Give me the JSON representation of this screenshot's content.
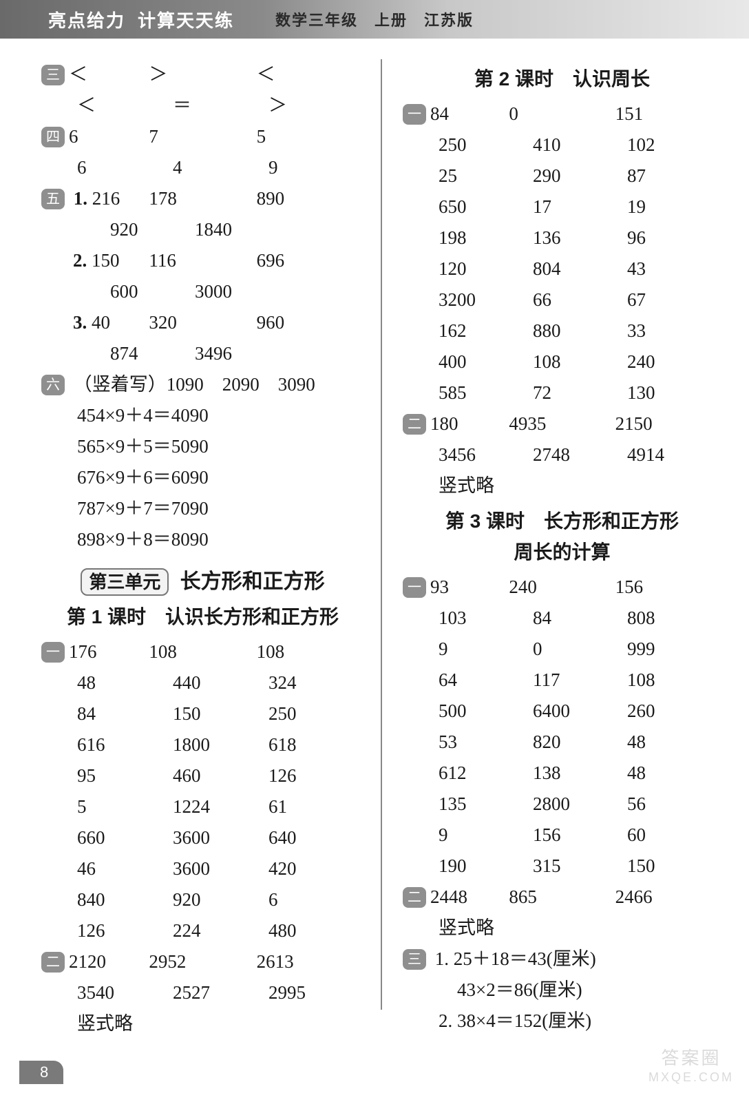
{
  "header": {
    "brand": "亮点给力",
    "title": "计算天天练",
    "sub": "数学三年级　上册　江苏版"
  },
  "page_number": "8",
  "watermark": {
    "line1": "答案圈",
    "line2": "MXQE.COM"
  },
  "left": {
    "m3": "三",
    "san_rows": [
      [
        "＜",
        "＞",
        "＜"
      ],
      [
        "＜",
        "＝",
        "＞"
      ]
    ],
    "m4": "四",
    "si_rows": [
      [
        "6",
        "7",
        "5"
      ],
      [
        "6",
        "4",
        "9"
      ]
    ],
    "m5": "五",
    "wu": [
      {
        "num": "1.",
        "rows": [
          [
            "216",
            "178",
            "890"
          ],
          [
            "920",
            "1840",
            ""
          ]
        ]
      },
      {
        "num": "2.",
        "rows": [
          [
            "150",
            "116",
            "696"
          ],
          [
            "600",
            "3000",
            ""
          ]
        ]
      },
      {
        "num": "3.",
        "rows": [
          [
            "40",
            "320",
            "960"
          ],
          [
            "874",
            "3496",
            ""
          ]
        ]
      }
    ],
    "m6": "六",
    "liu_head": "（竖着写）1090　2090　3090",
    "liu_eqs": [
      "454×9＋4＝4090",
      "565×9＋5＝5090",
      "676×9＋6＝6090",
      "787×9＋7＝7090",
      "898×9＋8＝8090"
    ],
    "unit_badge": "第三单元",
    "unit_title": "长方形和正方形",
    "lesson1_title": "第 1 课时　认识长方形和正方形",
    "m1a": "一",
    "l1_rows": [
      [
        "176",
        "108",
        "108"
      ],
      [
        "48",
        "440",
        "324"
      ],
      [
        "84",
        "150",
        "250"
      ],
      [
        "616",
        "1800",
        "618"
      ],
      [
        "95",
        "460",
        "126"
      ],
      [
        "5",
        "1224",
        "61"
      ],
      [
        "660",
        "3600",
        "640"
      ],
      [
        "46",
        "3600",
        "420"
      ],
      [
        "840",
        "920",
        "6"
      ],
      [
        "126",
        "224",
        "480"
      ]
    ],
    "m2a": "二",
    "l1b_rows": [
      [
        "2120",
        "2952",
        "2613"
      ],
      [
        "3540",
        "2527",
        "2995"
      ]
    ],
    "l1_note": "竖式略"
  },
  "right": {
    "lesson2_title": "第 2 课时　认识周长",
    "m1b": "一",
    "l2_rows": [
      [
        "84",
        "0",
        "151"
      ],
      [
        "250",
        "410",
        "102"
      ],
      [
        "25",
        "290",
        "87"
      ],
      [
        "650",
        "17",
        "19"
      ],
      [
        "198",
        "136",
        "96"
      ],
      [
        "120",
        "804",
        "43"
      ],
      [
        "3200",
        "66",
        "67"
      ],
      [
        "162",
        "880",
        "33"
      ],
      [
        "400",
        "108",
        "240"
      ],
      [
        "585",
        "72",
        "130"
      ]
    ],
    "m2b": "二",
    "l2b_rows": [
      [
        "180",
        "4935",
        "2150"
      ],
      [
        "3456",
        "2748",
        "4914"
      ]
    ],
    "l2_note": "竖式略",
    "lesson3_title_a": "第 3 课时　长方形和正方形",
    "lesson3_title_b": "周长的计算",
    "m1c": "一",
    "l3_rows": [
      [
        "93",
        "240",
        "156"
      ],
      [
        "103",
        "84",
        "808"
      ],
      [
        "9",
        "0",
        "999"
      ],
      [
        "64",
        "117",
        "108"
      ],
      [
        "500",
        "6400",
        "260"
      ],
      [
        "53",
        "820",
        "48"
      ],
      [
        "612",
        "138",
        "48"
      ],
      [
        "135",
        "2800",
        "56"
      ],
      [
        "9",
        "156",
        "60"
      ],
      [
        "190",
        "315",
        "150"
      ]
    ],
    "m2c": "二",
    "l3b_rows": [
      [
        "2448",
        "865",
        "2466"
      ]
    ],
    "l3_note": "竖式略",
    "m3c": "三",
    "l3c_lines": [
      "1. 25＋18＝43(厘米)",
      "　43×2＝86(厘米)",
      "2. 38×4＝152(厘米)"
    ]
  }
}
